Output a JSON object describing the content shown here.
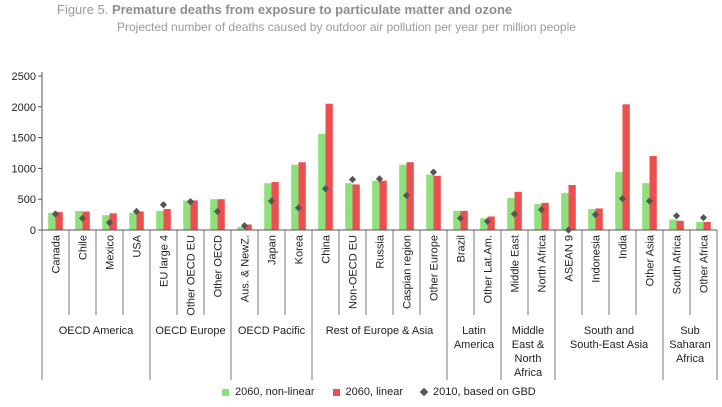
{
  "figure_label": "Figure 5.",
  "figure_title": "Premature deaths from exposure to particulate matter and ozone",
  "figure_subtitle": "Projected number of deaths caused by outdoor air pollution per year per million people",
  "colors": {
    "nonlinear": "#8ee07a",
    "linear": "#ec4f4f",
    "gbd": "#555555",
    "axis": "#555555",
    "grid": "#dddddd"
  },
  "chart_data": {
    "type": "bar",
    "title": "Premature deaths from exposure to particulate matter and ozone",
    "subtitle": "Projected number of deaths caused by outdoor air pollution per year per million people",
    "xlabel": "",
    "ylabel": "",
    "ylim": [
      0,
      2500
    ],
    "yticks": [
      0,
      500,
      1000,
      1500,
      2000,
      2500
    ],
    "legend_position": "bottom",
    "categories": [
      "Canada",
      "Chile",
      "Mexico",
      "USA",
      "EU large 4",
      "Other OECD EU",
      "Other OECD",
      "Aus. & NewZ.",
      "Japan",
      "Korea",
      "China",
      "Non-OECD EU",
      "Russia",
      "Caspian region",
      "Other Europe",
      "Brazil",
      "Other Lat.Am.",
      "Middle East",
      "North Africa",
      "ASEAN 9",
      "Indonesia",
      "India",
      "Other Asia",
      "South Africa",
      "Other Africa"
    ],
    "groups": [
      {
        "label": "OECD America",
        "count": 4
      },
      {
        "label": "OECD Europe",
        "count": 3
      },
      {
        "label": "OECD Pacific",
        "count": 3
      },
      {
        "label": "Rest of Europe & Asia",
        "count": 5
      },
      {
        "label": "Latin America",
        "count": 2
      },
      {
        "label": "Middle East & North Africa",
        "count": 2
      },
      {
        "label": "South and South-East Asia",
        "count": 4
      },
      {
        "label": "Sub Saharan Africa",
        "count": 2
      }
    ],
    "series": [
      {
        "name": "2060, non-linear",
        "kind": "bar",
        "values": [
          280,
          310,
          240,
          280,
          310,
          480,
          500,
          50,
          760,
          1060,
          1560,
          760,
          800,
          1060,
          900,
          310,
          190,
          520,
          420,
          600,
          340,
          940,
          760,
          170,
          130
        ]
      },
      {
        "name": "2060, linear",
        "kind": "bar",
        "values": [
          290,
          300,
          270,
          300,
          340,
          480,
          500,
          90,
          780,
          1100,
          2050,
          740,
          800,
          1100,
          880,
          310,
          220,
          620,
          440,
          730,
          350,
          2040,
          1200,
          150,
          130
        ]
      },
      {
        "name": "2010, based on GBD",
        "kind": "marker",
        "values": [
          260,
          190,
          120,
          300,
          410,
          460,
          300,
          70,
          470,
          360,
          670,
          820,
          830,
          560,
          940,
          190,
          140,
          260,
          330,
          0,
          250,
          510,
          470,
          230,
          200
        ]
      }
    ]
  }
}
